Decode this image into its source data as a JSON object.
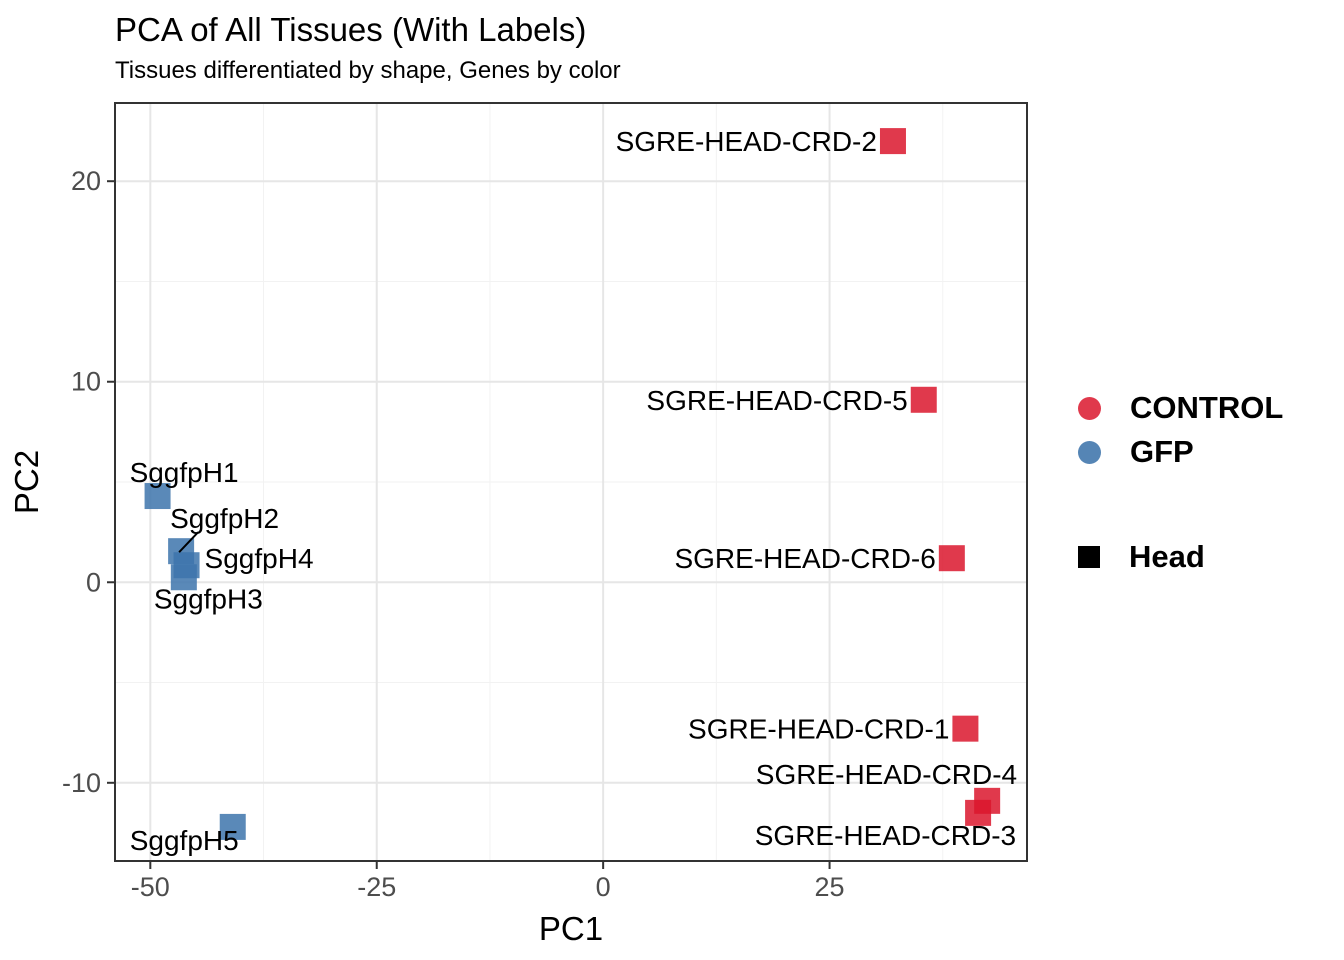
{
  "header": {
    "title": "PCA of All Tissues (With Labels)",
    "subtitle": "Tissues differentiated by shape, Genes by color"
  },
  "legend": {
    "color_items": [
      {
        "label": "CONTROL",
        "color": "#E0394C",
        "shape": "circle"
      },
      {
        "label": "GFP",
        "color": "#5585B5",
        "shape": "circle"
      }
    ],
    "shape_items": [
      {
        "label": "Head",
        "color": "#000000",
        "shape": "square"
      }
    ]
  },
  "chart_data": {
    "type": "scatter",
    "title": "PCA of All Tissues (With Labels)",
    "subtitle": "Tissues differentiated by shape, Genes by color",
    "xlabel": "PC1",
    "ylabel": "PC2",
    "xlim": [
      -53.9,
      46.8
    ],
    "ylim": [
      -13.9,
      23.9
    ],
    "x_ticks": [
      -50,
      -25,
      0,
      25
    ],
    "y_ticks": [
      -10,
      0,
      10,
      20
    ],
    "x_minor_gridlines": [
      -37.5,
      -12.5,
      12.5,
      37.5
    ],
    "y_minor_gridlines": [
      -5,
      5,
      15
    ],
    "grid": "on",
    "legend_position": "right",
    "marker": "square",
    "marker_size_px": 26,
    "colors": {
      "control_legend": "#E0394C",
      "gfp_legend": "#5585B5",
      "control_fill": "#DB162D",
      "gfp_fill": "#3D74AC",
      "fill_opacity": 0.85,
      "panel_border": "#333333",
      "grid_major": "#E6E6E6",
      "grid_minor": "#F2F2F2",
      "tick_text": "#4D4D4D"
    },
    "series": [
      {
        "name": "CONTROL",
        "shape_group": "Head",
        "color": "#E0394C",
        "fill": "#DB162D",
        "points": [
          {
            "label": "SGRE-HEAD-CRD-2",
            "x": 32.0,
            "y": 22.0,
            "anchor": "end",
            "dx": -16,
            "dy": 0,
            "leader": false
          },
          {
            "label": "SGRE-HEAD-CRD-5",
            "x": 35.4,
            "y": 9.1,
            "anchor": "end",
            "dx": -16,
            "dy": 0,
            "leader": false
          },
          {
            "label": "SGRE-HEAD-CRD-6",
            "x": 38.5,
            "y": 1.2,
            "anchor": "end",
            "dx": -16,
            "dy": 0,
            "leader": false
          },
          {
            "label": "SGRE-HEAD-CRD-1",
            "x": 40.0,
            "y": -7.3,
            "anchor": "end",
            "dx": -16,
            "dy": 0,
            "leader": false
          },
          {
            "label": "SGRE-HEAD-CRD-4",
            "x": 42.4,
            "y": -10.9,
            "anchor": "end",
            "dx": 30,
            "dy": -27,
            "leader": false
          },
          {
            "label": "SGRE-HEAD-CRD-3",
            "x": 41.4,
            "y": -11.5,
            "anchor": "end",
            "dx": 38,
            "dy": 22,
            "leader": false
          }
        ]
      },
      {
        "name": "GFP",
        "shape_group": "Head",
        "color": "#5585B5",
        "fill": "#3D74AC",
        "points": [
          {
            "label": "SggfpH1",
            "x": -49.2,
            "y": 4.3,
            "anchor": "start",
            "dx": -28,
            "dy": -24,
            "leader": false
          },
          {
            "label": "SggfpH2",
            "x": -46.6,
            "y": 1.55,
            "anchor": "start",
            "dx": -11,
            "dy": -33,
            "leader": true
          },
          {
            "label": "SggfpH4",
            "x": -46.0,
            "y": 0.85,
            "anchor": "start",
            "dx": 18,
            "dy": -7,
            "leader": false
          },
          {
            "label": "SggfpH3",
            "x": -46.3,
            "y": 0.25,
            "anchor": "start",
            "dx": -30,
            "dy": 21,
            "leader": false
          },
          {
            "label": "SggfpH5",
            "x": -40.9,
            "y": -12.2,
            "anchor": "start",
            "dx": -103,
            "dy": 13,
            "leader": false
          }
        ]
      }
    ]
  }
}
